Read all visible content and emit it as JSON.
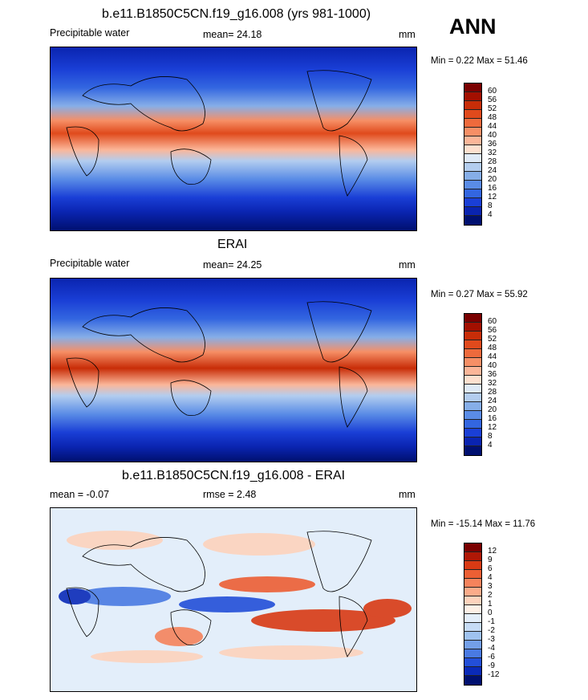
{
  "season": "ANN",
  "panels": [
    {
      "title": "b.e11.B1850C5CN.f19_g16.008 (yrs 981-1000)",
      "left": "Precipitable water",
      "mean_label": "mean=",
      "mean": "24.18",
      "units": "mm",
      "minmax": "Min =   0.22 Max =  51.46",
      "colorbar": {
        "labels": [
          "60",
          "56",
          "52",
          "48",
          "44",
          "40",
          "36",
          "32",
          "28",
          "24",
          "20",
          "16",
          "12",
          "8",
          "4"
        ],
        "colors": [
          "#7a0000",
          "#a31000",
          "#c82d08",
          "#e04a1c",
          "#ee6a3c",
          "#f68f66",
          "#fbb699",
          "#fde0cf",
          "#dfeaf7",
          "#b3cdef",
          "#86aee8",
          "#5a8ce6",
          "#3366e0",
          "#1a3fd6",
          "#0a24b0",
          "#001070"
        ]
      }
    },
    {
      "title": "ERAI",
      "left": "Precipitable water",
      "mean_label": "mean=",
      "mean": "24.25",
      "units": "mm",
      "minmax": "Min =   0.27 Max =  55.92",
      "colorbar": {
        "labels": [
          "60",
          "56",
          "52",
          "48",
          "44",
          "40",
          "36",
          "32",
          "28",
          "24",
          "20",
          "16",
          "12",
          "8",
          "4"
        ],
        "colors": [
          "#7a0000",
          "#a31000",
          "#c82d08",
          "#e04a1c",
          "#ee6a3c",
          "#f68f66",
          "#fbb699",
          "#fde0cf",
          "#dfeaf7",
          "#b3cdef",
          "#86aee8",
          "#5a8ce6",
          "#3366e0",
          "#1a3fd6",
          "#0a24b0",
          "#001070"
        ]
      }
    },
    {
      "title": "b.e11.B1850C5CN.f19_g16.008 - ERAI",
      "left_label": "mean =",
      "left": "-0.07",
      "mean_label": "rmse =",
      "mean": "2.48",
      "units": "mm",
      "minmax": "Min = -15.14 Max =  11.76",
      "colorbar": {
        "labels": [
          "12",
          "9",
          "6",
          "4",
          "3",
          "2",
          "1",
          "0",
          "-1",
          "-2",
          "-3",
          "-4",
          "-6",
          "-9",
          "-12"
        ],
        "colors": [
          "#7a0000",
          "#b01806",
          "#d83a14",
          "#ec5f34",
          "#f5835c",
          "#fbab8a",
          "#fdd3bd",
          "#fdf0e6",
          "#e3eefa",
          "#c6dbf5",
          "#9fc2ef",
          "#739fe8",
          "#4a7ae2",
          "#234fd8",
          "#0a2ab8",
          "#001070"
        ]
      }
    }
  ]
}
